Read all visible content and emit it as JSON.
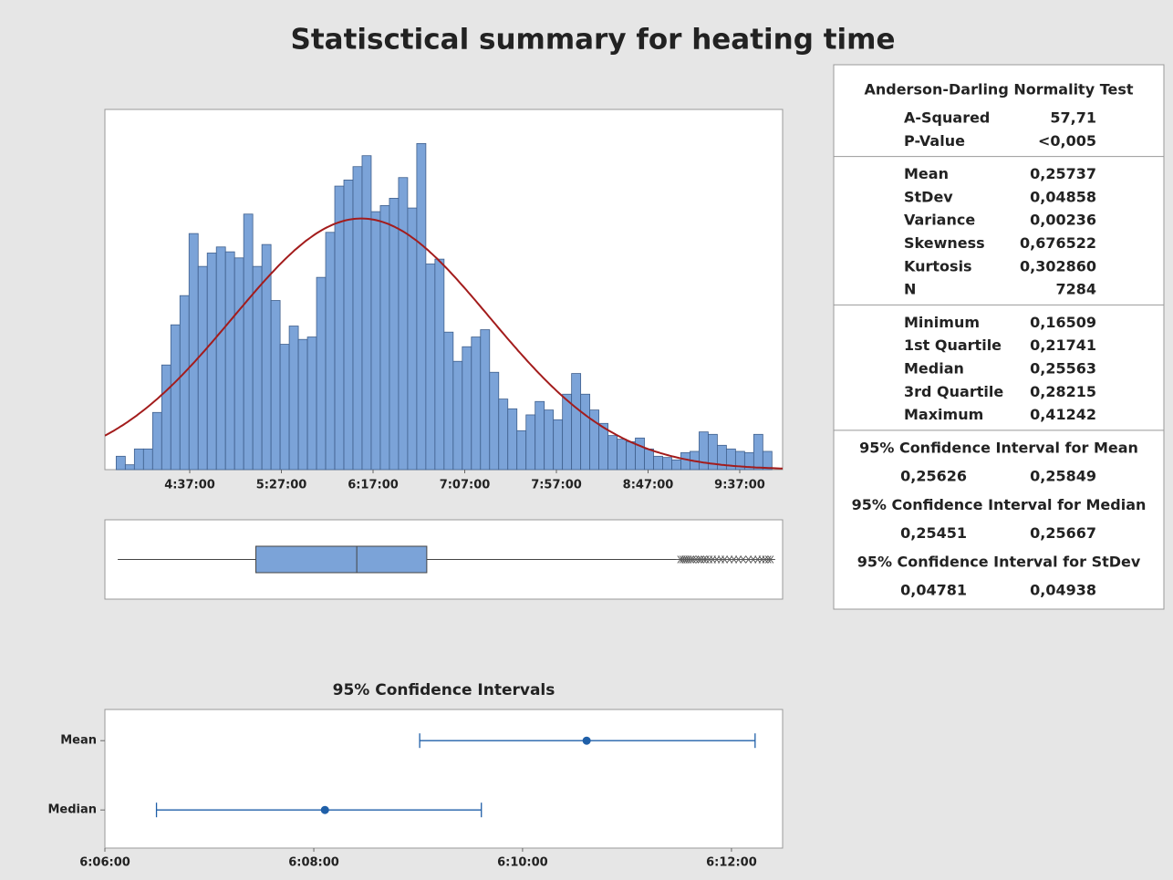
{
  "title": "Statisctical summary for heating time",
  "chart_data": [
    {
      "type": "histogram",
      "bins": [
        0.1645,
        0.16795,
        0.1714,
        0.17485,
        0.1783,
        0.18175,
        0.1852,
        0.18865,
        0.1921,
        0.19555,
        0.199,
        0.20245,
        0.2059,
        0.20935,
        0.2128,
        0.21625,
        0.2197,
        0.22315,
        0.2266,
        0.23005,
        0.2335,
        0.23695,
        0.2404,
        0.24385,
        0.2473,
        0.25075,
        0.2542,
        0.25765,
        0.2611,
        0.26455,
        0.268,
        0.27145,
        0.2749,
        0.27835,
        0.2818,
        0.28525,
        0.2887,
        0.29215,
        0.2956,
        0.29905,
        0.3025,
        0.30595,
        0.3094,
        0.31285,
        0.3163,
        0.31975,
        0.3232,
        0.32665,
        0.3301,
        0.33355,
        0.337,
        0.34045,
        0.3439,
        0.34735,
        0.3508,
        0.35425,
        0.3577,
        0.36115,
        0.3646,
        0.36805,
        0.3715,
        0.37495,
        0.3784,
        0.38185,
        0.3853,
        0.38875,
        0.3922,
        0.39565,
        0.3991,
        0.40255,
        0.406,
        0.40945,
        0.4129
      ],
      "values": [
        11,
        4,
        17,
        17,
        47,
        86,
        119,
        143,
        194,
        167,
        178,
        183,
        179,
        174,
        210,
        167,
        185,
        139,
        103,
        118,
        107,
        109,
        158,
        195,
        233,
        238,
        249,
        258,
        212,
        217,
        223,
        240,
        215,
        268,
        169,
        173,
        113,
        89,
        101,
        109,
        115,
        80,
        58,
        50,
        32,
        45,
        56,
        49,
        41,
        62,
        79,
        62,
        49,
        38,
        28,
        25,
        23,
        26,
        17,
        11,
        10,
        8,
        14,
        15,
        31,
        29,
        20,
        17,
        15,
        14,
        29,
        15
      ],
      "color": "#7ba3d8",
      "edge_color": "#3f5f8c",
      "fit": {
        "type": "normal",
        "mean": 0.25737,
        "sd": 0.04858,
        "n": 7284,
        "color": "#a31c1c"
      },
      "xlim": [
        0.160226,
        0.416934
      ],
      "ylim": [
        0,
        296
      ],
      "xticks": [
        {
          "value": 0.192361,
          "label": "4:37:00"
        },
        {
          "value": 0.227083,
          "label": "5:27:00"
        },
        {
          "value": 0.261806,
          "label": "6:17:00"
        },
        {
          "value": 0.296528,
          "label": "7:07:00"
        },
        {
          "value": 0.33125,
          "label": "7:57:00"
        },
        {
          "value": 0.365972,
          "label": "8:47:00"
        },
        {
          "value": 0.400694,
          "label": "9:37:00"
        }
      ]
    },
    {
      "type": "box",
      "whisker_low": 0.16509,
      "q1": 0.21741,
      "median": 0.25563,
      "q3": 0.28215,
      "whisker_high": 0.3779,
      "outliers": [
        0.3782,
        0.379,
        0.3798,
        0.3805,
        0.3813,
        0.3822,
        0.383,
        0.3841,
        0.3852,
        0.386,
        0.3871,
        0.388,
        0.3892,
        0.3905,
        0.392,
        0.3936,
        0.395,
        0.3968,
        0.3985,
        0.4002,
        0.402,
        0.404,
        0.4058,
        0.4075,
        0.409,
        0.4103,
        0.4115,
        0.4124
      ],
      "color": "#7ba3d8",
      "xlim": [
        0.160226,
        0.416934
      ]
    },
    {
      "type": "interval",
      "title": "95% Confidence Intervals",
      "categories": [
        "Mean",
        "Median"
      ],
      "values": [
        0.25737,
        0.25563
      ],
      "ci_low": [
        0.25626,
        0.25451
      ],
      "ci_high": [
        0.25849,
        0.25667
      ],
      "color": "#1f5fa8",
      "xlim": [
        0.254167,
        0.258673
      ],
      "xticks": [
        {
          "value": 0.254167,
          "label": "6:06:00"
        },
        {
          "value": 0.255556,
          "label": "6:08:00"
        },
        {
          "value": 0.256944,
          "label": "6:10:00"
        },
        {
          "value": 0.258333,
          "label": "6:12:00"
        }
      ]
    }
  ],
  "table": {
    "sections": [
      {
        "header": "Anderson-Darling Normality Test",
        "rows": [
          [
            "A-Squared",
            "57,71"
          ],
          [
            "P-Value",
            "<0,005"
          ]
        ]
      },
      {
        "rows": [
          [
            "Mean",
            "0,25737"
          ],
          [
            "StDev",
            "0,04858"
          ],
          [
            "Variance",
            "0,00236"
          ],
          [
            "Skewness",
            "0,676522"
          ],
          [
            "Kurtosis",
            "0,302860"
          ],
          [
            "N",
            "7284"
          ]
        ]
      },
      {
        "rows": [
          [
            "Minimum",
            "0,16509"
          ],
          [
            "1st Quartile",
            "0,21741"
          ],
          [
            "Median",
            "0,25563"
          ],
          [
            "3rd Quartile",
            "0,28215"
          ],
          [
            "Maximum",
            "0,41242"
          ]
        ]
      },
      {
        "header": "95% Confidence Interval for Mean",
        "rows": [
          [
            "0,25626",
            "0,25849"
          ]
        ]
      },
      {
        "header": "95% Confidence Interval for Median",
        "rows": [
          [
            "0,25451",
            "0,25667"
          ]
        ]
      },
      {
        "header": "95% Confidence Interval for StDev",
        "rows": [
          [
            "0,04781",
            "0,04938"
          ]
        ]
      }
    ]
  }
}
